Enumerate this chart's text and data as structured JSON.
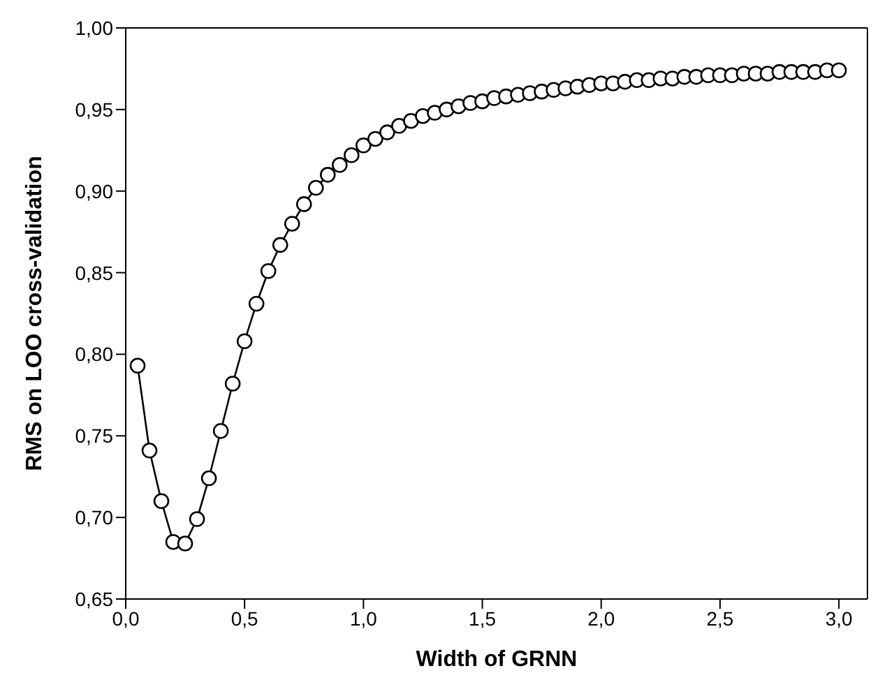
{
  "chart_data": {
    "type": "line",
    "xlabel": "Width of GRNN",
    "ylabel": "RMS on LOO cross-validation",
    "x": [
      0.05,
      0.1,
      0.15,
      0.2,
      0.25,
      0.3,
      0.35,
      0.4,
      0.45,
      0.5,
      0.55,
      0.6,
      0.65,
      0.7,
      0.75,
      0.8,
      0.85,
      0.9,
      0.95,
      1.0,
      1.05,
      1.1,
      1.15,
      1.2,
      1.25,
      1.3,
      1.35,
      1.4,
      1.45,
      1.5,
      1.55,
      1.6,
      1.65,
      1.7,
      1.75,
      1.8,
      1.85,
      1.9,
      1.95,
      2.0,
      2.05,
      2.1,
      2.15,
      2.2,
      2.25,
      2.3,
      2.35,
      2.4,
      2.45,
      2.5,
      2.55,
      2.6,
      2.65,
      2.7,
      2.75,
      2.8,
      2.85,
      2.9,
      2.95,
      3.0
    ],
    "series": [
      {
        "color": "#000000",
        "values": [
          0.793,
          0.741,
          0.71,
          0.685,
          0.684,
          0.699,
          0.724,
          0.753,
          0.782,
          0.808,
          0.831,
          0.851,
          0.867,
          0.88,
          0.892,
          0.902,
          0.91,
          0.916,
          0.922,
          0.928,
          0.932,
          0.936,
          0.94,
          0.943,
          0.946,
          0.948,
          0.95,
          0.952,
          0.954,
          0.955,
          0.957,
          0.958,
          0.959,
          0.96,
          0.961,
          0.962,
          0.963,
          0.964,
          0.965,
          0.966,
          0.966,
          0.967,
          0.968,
          0.968,
          0.969,
          0.969,
          0.97,
          0.97,
          0.971,
          0.971,
          0.971,
          0.972,
          0.972,
          0.972,
          0.973,
          0.973,
          0.973,
          0.973,
          0.974,
          0.974
        ]
      }
    ],
    "xlim": [
      0,
      3.12
    ],
    "xticks": [
      {
        "value": 0,
        "label": "0,0"
      },
      {
        "value": 0.5,
        "label": "0,5"
      },
      {
        "value": 1,
        "label": "1,0"
      },
      {
        "value": 1.5,
        "label": "1,5"
      },
      {
        "value": 2,
        "label": "2,0"
      },
      {
        "value": 2.5,
        "label": "2,5"
      },
      {
        "value": 3,
        "label": "3,0"
      }
    ],
    "ylim": [
      0.65,
      1.0
    ],
    "yticks": [
      {
        "value": 0.65,
        "label": "0,65"
      },
      {
        "value": 0.7,
        "label": "0,70"
      },
      {
        "value": 0.75,
        "label": "0,75"
      },
      {
        "value": 0.8,
        "label": "0,80"
      },
      {
        "value": 0.85,
        "label": "0,85"
      },
      {
        "value": 0.9,
        "label": "0,90"
      },
      {
        "value": 0.95,
        "label": "0,95"
      },
      {
        "value": 1.0,
        "label": "1,00"
      }
    ],
    "grid": false,
    "legend": false,
    "marker": "circle",
    "line_style": "solid"
  }
}
